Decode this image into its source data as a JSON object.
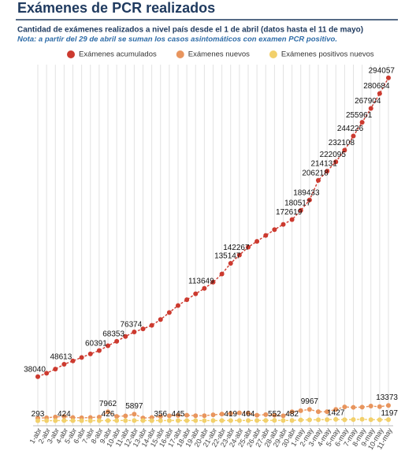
{
  "chart_data": {
    "type": "line",
    "title": "Exámenes de PCR realizados",
    "subtitle": "Cantidad de exámenes realizados a nivel país desde el 1 de abril (datos hasta el 11 de mayo)",
    "note": "Nota: a partir del 29 de abril se suman los casos asintomáticos con examen PCR positivo.",
    "categories": [
      "1-abr",
      "2-abr",
      "3-abr",
      "4-abr",
      "5-abr",
      "6-abr",
      "7-abr",
      "8-abr",
      "9-abr",
      "10-abr",
      "11-abr",
      "12-abr",
      "13-abr",
      "14-abr",
      "15-abr",
      "16-abr",
      "17-abr",
      "18-abr",
      "19-abr",
      "20-abr",
      "21-abr",
      "22-abr",
      "23-abr",
      "24-abr",
      "25-abr",
      "26-abr",
      "27-abr",
      "28-abr",
      "29-abr",
      "30-abr",
      "1-may",
      "2-may",
      "3-may",
      "4-may",
      "5-may",
      "6-may",
      "7-may",
      "8-may",
      "9-may",
      "10-may",
      "11-may"
    ],
    "ylim": [
      0,
      300000
    ],
    "grid": true,
    "series": [
      {
        "name": "Exámenes acumulados",
        "color": "#cc3a2f",
        "values": [
          38040,
          41000,
          44500,
          48613,
          51500,
          54500,
          57500,
          60391,
          64500,
          68353,
          72500,
          76374,
          79000,
          82000,
          87000,
          93000,
          99000,
          104000,
          109000,
          113649,
          119000,
          126000,
          135147,
          142267,
          149000,
          154000,
          159000,
          164000,
          168500,
          172619,
          180517,
          189433,
          206218,
          214131,
          222095,
          232108,
          244226,
          255961,
          267904,
          280684,
          294057
        ],
        "value_labels": [
          "38040",
          null,
          null,
          "48613",
          null,
          null,
          null,
          "60391",
          null,
          "68353",
          null,
          "76374",
          null,
          null,
          null,
          null,
          null,
          null,
          null,
          "113649",
          null,
          null,
          "135147",
          "142267",
          null,
          null,
          null,
          null,
          null,
          "172619",
          "180517",
          "189433",
          "206218",
          "214131",
          "222095",
          "232108",
          "244226",
          "255961",
          "267904",
          "280684",
          "294057"
        ]
      },
      {
        "name": "Exámenes nuevos",
        "color": "#e8955e",
        "values": [
          2500,
          2800,
          3500,
          4000,
          3000,
          2800,
          3000,
          3400,
          7962,
          4000,
          4400,
          5897,
          2600,
          3000,
          4000,
          4500,
          4800,
          5000,
          4600,
          4600,
          5300,
          6000,
          6500,
          7000,
          6800,
          5000,
          5500,
          5000,
          4500,
          7900,
          8900,
          9967,
          8000,
          8000,
          10000,
          12100,
          11700,
          11900,
          12800,
          12300,
          13373
        ],
        "value_labels": [
          null,
          null,
          null,
          null,
          null,
          null,
          null,
          null,
          "7962",
          null,
          null,
          "5897",
          null,
          null,
          null,
          null,
          null,
          null,
          null,
          null,
          null,
          null,
          null,
          null,
          null,
          null,
          null,
          null,
          null,
          null,
          null,
          "9967",
          null,
          null,
          null,
          null,
          null,
          null,
          null,
          null,
          "13373"
        ]
      },
      {
        "name": "Exámenes positivos nuevos",
        "color": "#f2d06b",
        "values": [
          293,
          310,
          330,
          424,
          300,
          310,
          280,
          350,
          426,
          430,
          460,
          400,
          390,
          370,
          356,
          420,
          445,
          400,
          420,
          380,
          400,
          410,
          419,
          430,
          464,
          490,
          520,
          552,
          500,
          482,
          900,
          1000,
          1100,
          1200,
          1427,
          1100,
          1300,
          1500,
          1200,
          1100,
          1197
        ],
        "value_labels": [
          "293",
          null,
          null,
          "424",
          null,
          null,
          null,
          null,
          "426",
          null,
          null,
          null,
          null,
          null,
          "356",
          null,
          "445",
          null,
          null,
          null,
          null,
          null,
          "419",
          null,
          "464",
          null,
          null,
          "552",
          null,
          "482",
          null,
          null,
          null,
          null,
          "1427",
          null,
          null,
          null,
          null,
          null,
          "1197"
        ]
      }
    ]
  }
}
